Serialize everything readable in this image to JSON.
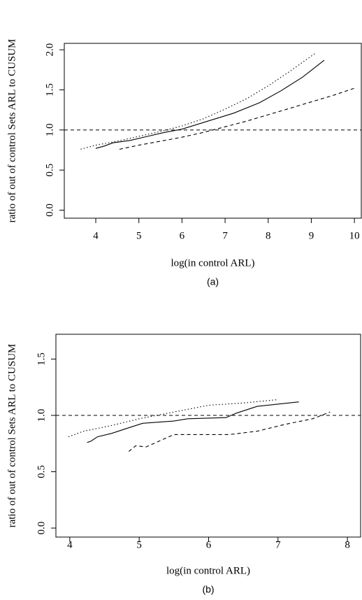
{
  "chart_data": [
    {
      "type": "line",
      "xlabel": "log(in control ARL)",
      "ylabel": "ratio of out of control Sets ARL to CUSUM",
      "caption": "(a)",
      "xlim": [
        3.27,
        10.16
      ],
      "ylim": [
        -0.1,
        2.08
      ],
      "xticks": [
        4,
        5,
        6,
        7,
        8,
        9,
        10
      ],
      "yticks": [
        {
          "value": 0,
          "label": "0.0"
        },
        0.5,
        {
          "value": 1,
          "label": "1.0"
        },
        1.5,
        {
          "value": 2,
          "label": "2.0"
        }
      ],
      "reference_line": 1,
      "series": [
        {
          "color": "#000000",
          "style": "solid",
          "x": [
            4.0,
            4.2,
            4.4,
            4.8,
            5.2,
            5.6,
            6.0,
            6.6,
            7.2,
            7.8,
            8.3,
            8.8,
            9.3
          ],
          "values": [
            0.77,
            0.8,
            0.84,
            0.87,
            0.92,
            0.97,
            1.01,
            1.11,
            1.21,
            1.34,
            1.49,
            1.66,
            1.87
          ]
        },
        {
          "color": "#000000",
          "style": "dotted",
          "x": [
            3.65,
            4.0,
            4.5,
            5.0,
            5.5,
            6.0,
            6.5,
            7.0,
            7.5,
            8.0,
            8.5,
            9.1
          ],
          "values": [
            0.76,
            0.81,
            0.86,
            0.92,
            0.98,
            1.05,
            1.14,
            1.26,
            1.39,
            1.55,
            1.73,
            1.96
          ]
        },
        {
          "color": "#000000",
          "style": "dashed",
          "x": [
            4.55,
            5.0,
            5.5,
            6.0,
            6.5,
            7.0,
            7.5,
            8.0,
            8.5,
            9.0,
            9.5,
            10.0
          ],
          "values": [
            0.76,
            0.81,
            0.86,
            0.91,
            0.97,
            1.04,
            1.11,
            1.19,
            1.27,
            1.35,
            1.43,
            1.52
          ]
        }
      ]
    },
    {
      "type": "line",
      "xlabel": "log(in control ARL)",
      "ylabel": "ratio of out of control Sets ARL to CUSUM",
      "caption": "(b)",
      "xlim": [
        3.8,
        8.19
      ],
      "ylim": [
        -0.08,
        1.72
      ],
      "xticks": [
        4,
        5,
        6,
        7,
        8
      ],
      "yticks": [
        {
          "value": 0,
          "label": "0.0"
        },
        0.5,
        {
          "value": 1,
          "label": "1.0"
        },
        1.5
      ],
      "reference_line": 1,
      "series": [
        {
          "color": "#000000",
          "style": "solid",
          "x": [
            4.25,
            4.3,
            4.4,
            4.6,
            4.8,
            5.05,
            5.5,
            5.7,
            6.25,
            6.4,
            6.7,
            7.3
          ],
          "values": [
            0.76,
            0.77,
            0.81,
            0.84,
            0.88,
            0.93,
            0.95,
            0.97,
            0.98,
            1.02,
            1.08,
            1.12
          ]
        },
        {
          "color": "#000000",
          "style": "dotted",
          "x": [
            3.98,
            4.2,
            4.6,
            5.0,
            5.5,
            6.0,
            6.5,
            7.0
          ],
          "values": [
            0.81,
            0.86,
            0.91,
            0.97,
            1.03,
            1.09,
            1.11,
            1.14
          ]
        },
        {
          "color": "#000000",
          "style": "dashed",
          "x": [
            4.85,
            4.95,
            5.1,
            5.5,
            6.0,
            6.3,
            6.7,
            7.1,
            7.5,
            7.75
          ],
          "values": [
            0.68,
            0.73,
            0.72,
            0.83,
            0.83,
            0.83,
            0.86,
            0.92,
            0.97,
            1.03
          ]
        }
      ]
    }
  ]
}
